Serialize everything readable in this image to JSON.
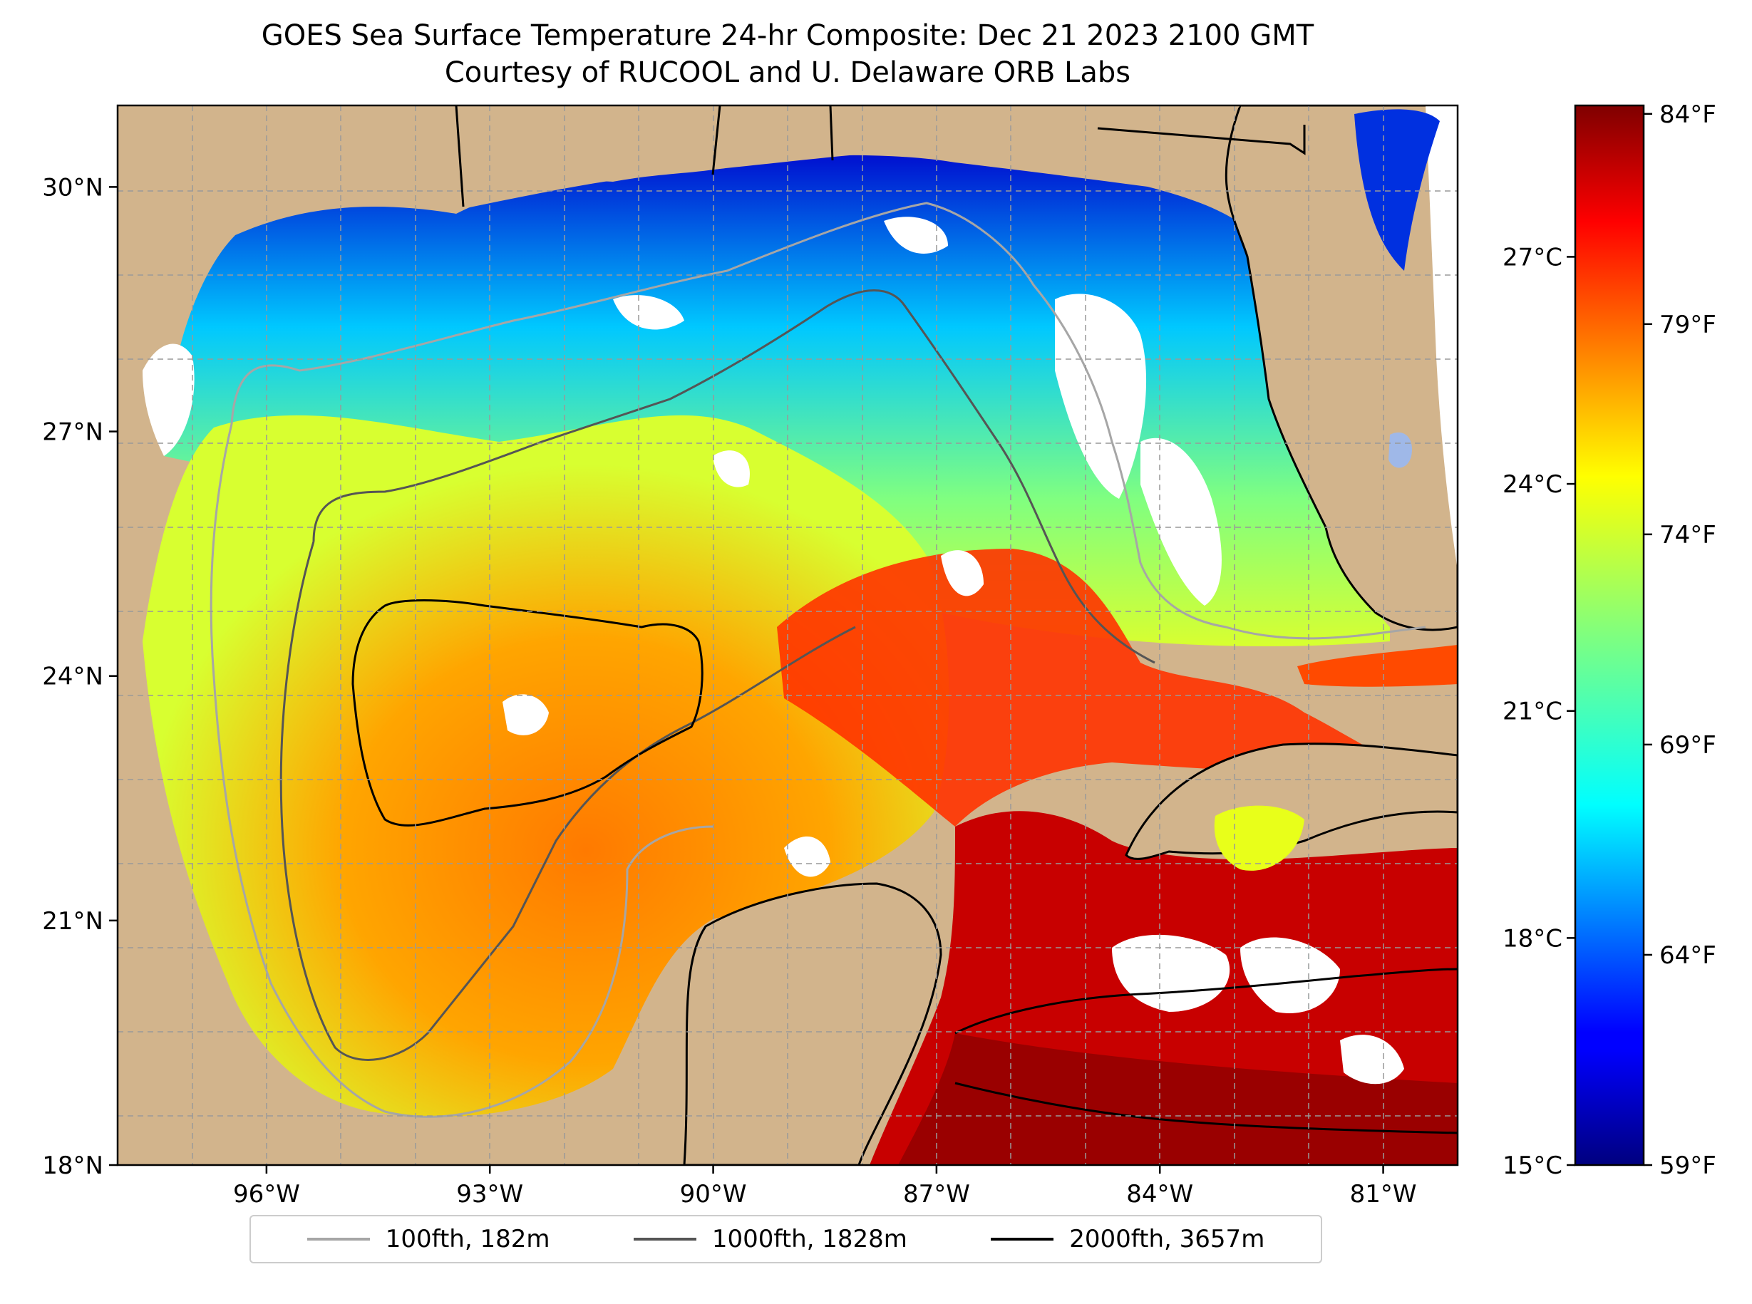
{
  "title": {
    "line1": "GOES Sea Surface Temperature 24-hr Composite: Dec 21 2023 2100 GMT",
    "line2": "Courtesy of RUCOOL and U. Delaware ORB Labs"
  },
  "map": {
    "lon_range": [
      -98,
      -80
    ],
    "lat_range": [
      18,
      31
    ],
    "lat_ticks": [
      {
        "value": 30,
        "label": "30°N"
      },
      {
        "value": 27,
        "label": "27°N"
      },
      {
        "value": 24,
        "label": "24°N"
      },
      {
        "value": 21,
        "label": "21°N"
      },
      {
        "value": 18,
        "label": "18°N"
      }
    ],
    "lon_ticks": [
      {
        "value": -96,
        "label": "96°W"
      },
      {
        "value": -93,
        "label": "93°W"
      },
      {
        "value": -90,
        "label": "90°W"
      },
      {
        "value": -87,
        "label": "87°W"
      },
      {
        "value": -84,
        "label": "84°W"
      },
      {
        "value": -81,
        "label": "81°W"
      }
    ],
    "land_color": "#d2b48c",
    "cloud_color": "#ffffff",
    "grid": "dashed"
  },
  "colorbar": {
    "colormap": "jet",
    "celsius_range": [
      15,
      29
    ],
    "celsius_ticks": [
      {
        "value": 27,
        "label": "27°C"
      },
      {
        "value": 24,
        "label": "24°C"
      },
      {
        "value": 21,
        "label": "21°C"
      },
      {
        "value": 18,
        "label": "18°C"
      },
      {
        "value": 15,
        "label": "15°C"
      }
    ],
    "fahrenheit_ticks": [
      {
        "value": 84,
        "label": "84°F"
      },
      {
        "value": 79,
        "label": "79°F"
      },
      {
        "value": 74,
        "label": "74°F"
      },
      {
        "value": 69,
        "label": "69°F"
      },
      {
        "value": 64,
        "label": "64°F"
      },
      {
        "value": 59,
        "label": "59°F"
      }
    ]
  },
  "legend": [
    {
      "label": "100fth, 182m",
      "color": "#a6a6a6"
    },
    {
      "label": "1000fth, 1828m",
      "color": "#555555"
    },
    {
      "label": "2000fth, 3657m",
      "color": "#000000"
    }
  ]
}
